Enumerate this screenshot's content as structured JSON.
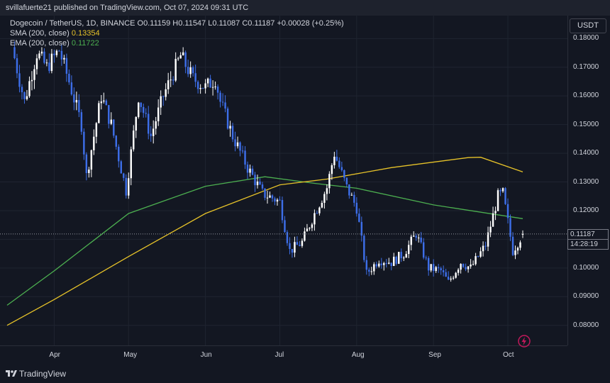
{
  "header": {
    "attribution": "svillafuerte21 published on TradingView.com, Oct 07, 2024 09:31 UTC"
  },
  "legend": {
    "symbol_line": "Dogecoin / TetherUS, 1D, BINANCE  O0.11159  H0.11547  L0.11087  C0.11187  +0.00028 (+0.25%)",
    "sma_label": "SMA (200, close)",
    "sma_value": "0.13354",
    "ema_label": "EMA (200, close)",
    "ema_value": "0.11722"
  },
  "currency": "USDT",
  "price_axis": {
    "ticks": [
      "0.18000",
      "0.17000",
      "0.16000",
      "0.15000",
      "0.14000",
      "0.13000",
      "0.12000",
      "0.11000",
      "0.10000",
      "0.09000",
      "0.08000"
    ],
    "last_price": "0.11187",
    "countdown": "14:28:19"
  },
  "time_axis": {
    "ticks": [
      "Apr",
      "May",
      "Jun",
      "Jul",
      "Aug",
      "Sep",
      "Oct"
    ]
  },
  "footer": {
    "brand": "TradingView"
  },
  "colors": {
    "background": "#131722",
    "up_candle": "#ffffff",
    "down_candle": "#3d6ee8",
    "sma_line": "#e6c229",
    "ema_line": "#4caf50",
    "grid": "#1f2430"
  },
  "icons": [
    "tradingview-logo-icon",
    "flash-icon"
  ],
  "chart_data": {
    "type": "candlestick",
    "symbol": "Dogecoin / TetherUS",
    "timeframe": "1D",
    "exchange": "BINANCE",
    "ylim": [
      0.073,
      0.188
    ],
    "last": {
      "open": 0.11159,
      "high": 0.11547,
      "low": 0.11087,
      "close": 0.11187,
      "change": 0.00028,
      "change_pct": 0.25
    },
    "trend_points": [
      [
        "2024-03-15",
        0.177
      ],
      [
        "2024-03-20",
        0.158
      ],
      [
        "2024-03-25",
        0.175
      ],
      [
        "2024-03-29",
        0.17
      ],
      [
        "2024-04-03",
        0.176
      ],
      [
        "2024-04-07",
        0.165
      ],
      [
        "2024-04-12",
        0.15
      ],
      [
        "2024-04-14",
        0.132
      ],
      [
        "2024-04-20",
        0.16
      ],
      [
        "2024-04-24",
        0.15
      ],
      [
        "2024-04-30",
        0.127
      ],
      [
        "2024-05-05",
        0.16
      ],
      [
        "2024-05-10",
        0.146
      ],
      [
        "2024-05-15",
        0.16
      ],
      [
        "2024-05-20",
        0.17
      ],
      [
        "2024-05-22",
        0.174
      ],
      [
        "2024-05-27",
        0.166
      ],
      [
        "2024-06-01",
        0.163
      ],
      [
        "2024-06-05",
        0.166
      ],
      [
        "2024-06-07",
        0.158
      ],
      [
        "2024-06-12",
        0.146
      ],
      [
        "2024-06-18",
        0.135
      ],
      [
        "2024-06-24",
        0.126
      ],
      [
        "2024-06-29",
        0.124
      ],
      [
        "2024-07-01",
        0.123
      ],
      [
        "2024-07-05",
        0.106
      ],
      [
        "2024-07-10",
        0.109
      ],
      [
        "2024-07-15",
        0.119
      ],
      [
        "2024-07-20",
        0.128
      ],
      [
        "2024-07-23",
        0.14
      ],
      [
        "2024-07-28",
        0.128
      ],
      [
        "2024-08-01",
        0.121
      ],
      [
        "2024-08-05",
        0.098
      ],
      [
        "2024-08-10",
        0.103
      ],
      [
        "2024-08-15",
        0.102
      ],
      [
        "2024-08-20",
        0.105
      ],
      [
        "2024-08-25",
        0.112
      ],
      [
        "2024-08-30",
        0.1
      ],
      [
        "2024-09-04",
        0.099
      ],
      [
        "2024-09-07",
        0.095
      ],
      [
        "2024-09-12",
        0.102
      ],
      [
        "2024-09-16",
        0.1
      ],
      [
        "2024-09-22",
        0.108
      ],
      [
        "2024-09-27",
        0.125
      ],
      [
        "2024-09-29",
        0.126
      ],
      [
        "2024-10-01",
        0.116
      ],
      [
        "2024-10-03",
        0.106
      ],
      [
        "2024-10-07",
        0.11187
      ]
    ],
    "sma_200": [
      [
        "2024-03-13",
        0.08
      ],
      [
        "2024-04-01",
        0.089
      ],
      [
        "2024-05-01",
        0.104
      ],
      [
        "2024-06-01",
        0.119
      ],
      [
        "2024-07-01",
        0.129
      ],
      [
        "2024-07-20",
        0.131
      ],
      [
        "2024-08-15",
        0.135
      ],
      [
        "2024-09-15",
        0.1385
      ],
      [
        "2024-09-20",
        0.1386
      ],
      [
        "2024-10-07",
        0.1335
      ]
    ],
    "ema_200": [
      [
        "2024-03-13",
        0.087
      ],
      [
        "2024-04-01",
        0.099
      ],
      [
        "2024-05-01",
        0.119
      ],
      [
        "2024-06-01",
        0.1285
      ],
      [
        "2024-06-25",
        0.1318
      ],
      [
        "2024-07-15",
        0.1295
      ],
      [
        "2024-08-01",
        0.1278
      ],
      [
        "2024-09-01",
        0.122
      ],
      [
        "2024-10-07",
        0.1172
      ]
    ]
  }
}
